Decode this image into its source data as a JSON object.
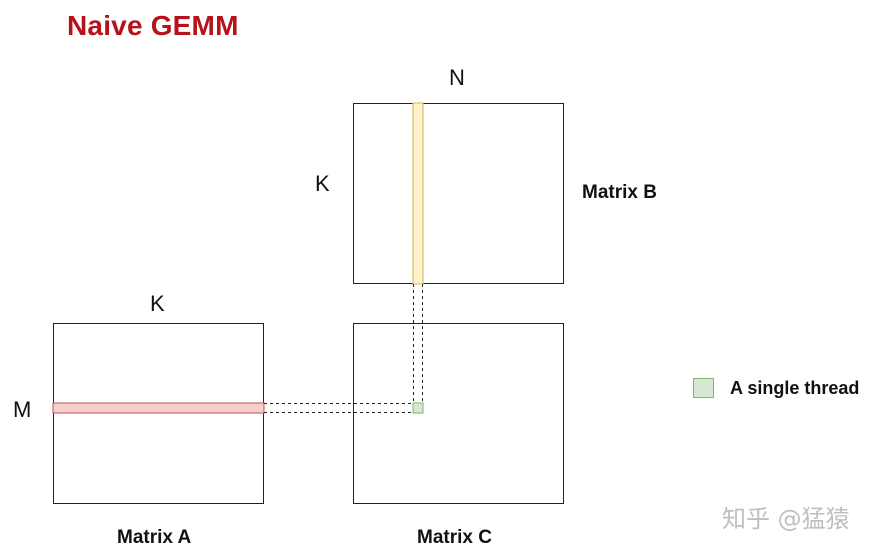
{
  "title": "Naive GEMM",
  "matrix_b": {
    "label": "Matrix B",
    "top_dim": "N",
    "side_dim": "K"
  },
  "matrix_a": {
    "label": "Matrix A",
    "top_dim": "K",
    "side_dim": "M"
  },
  "matrix_c": {
    "label": "Matrix C"
  },
  "legend": {
    "text": "A single thread"
  },
  "watermark": "知乎 @猛猿",
  "colors": {
    "title": "#b5121b",
    "row_highlight_fill": "#f8cecc",
    "row_highlight_stroke": "#b85450",
    "col_highlight_fill": "#fff2cc",
    "col_highlight_stroke": "#d6b656",
    "thread_fill": "#d5e8d4",
    "thread_stroke": "#82b366"
  }
}
